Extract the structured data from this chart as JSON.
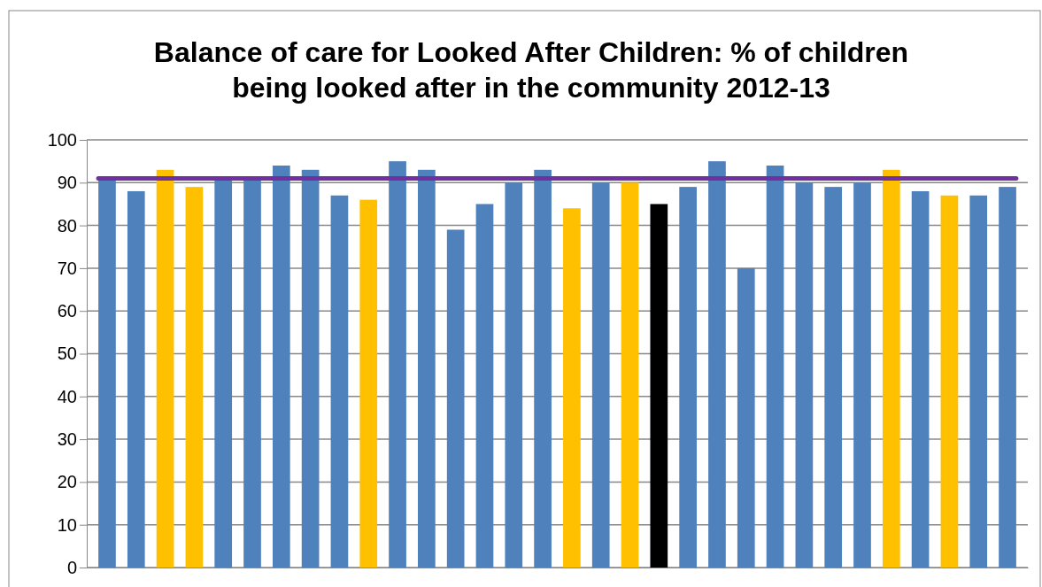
{
  "chart_data": {
    "type": "bar",
    "title": "Balance of care for Looked After Children: % of children being looked after in the community 2012-13",
    "categories": [
      null,
      null,
      null,
      null,
      null,
      null,
      null,
      null,
      null,
      null,
      null,
      null,
      null,
      null,
      null,
      null,
      null,
      null,
      null,
      null,
      null,
      null,
      null,
      null,
      null,
      null,
      null,
      null,
      null,
      null,
      null,
      null
    ],
    "values": [
      91,
      88,
      93,
      89,
      91,
      91,
      94,
      93,
      87,
      86,
      95,
      93,
      79,
      85,
      90,
      93,
      84,
      90,
      90,
      85,
      89,
      95,
      70,
      94,
      90,
      89,
      90,
      93,
      88,
      87,
      87,
      89
    ],
    "colors": [
      "#4f81bd",
      "#4f81bd",
      "#ffc000",
      "#ffc000",
      "#4f81bd",
      "#4f81bd",
      "#4f81bd",
      "#4f81bd",
      "#4f81bd",
      "#ffc000",
      "#4f81bd",
      "#4f81bd",
      "#4f81bd",
      "#4f81bd",
      "#4f81bd",
      "#4f81bd",
      "#ffc000",
      "#4f81bd",
      "#ffc000",
      "#000000",
      "#4f81bd",
      "#4f81bd",
      "#4f81bd",
      "#4f81bd",
      "#4f81bd",
      "#4f81bd",
      "#4f81bd",
      "#ffc000",
      "#4f81bd",
      "#ffc000",
      "#4f81bd",
      "#4f81bd"
    ],
    "ylim": [
      0,
      100
    ],
    "yticks": [
      0,
      10,
      20,
      30,
      40,
      50,
      60,
      70,
      80,
      90,
      100
    ],
    "grid": "y",
    "ref_lines": [
      {
        "axis": "y",
        "value": 91,
        "color": "#7030a0"
      }
    ]
  }
}
